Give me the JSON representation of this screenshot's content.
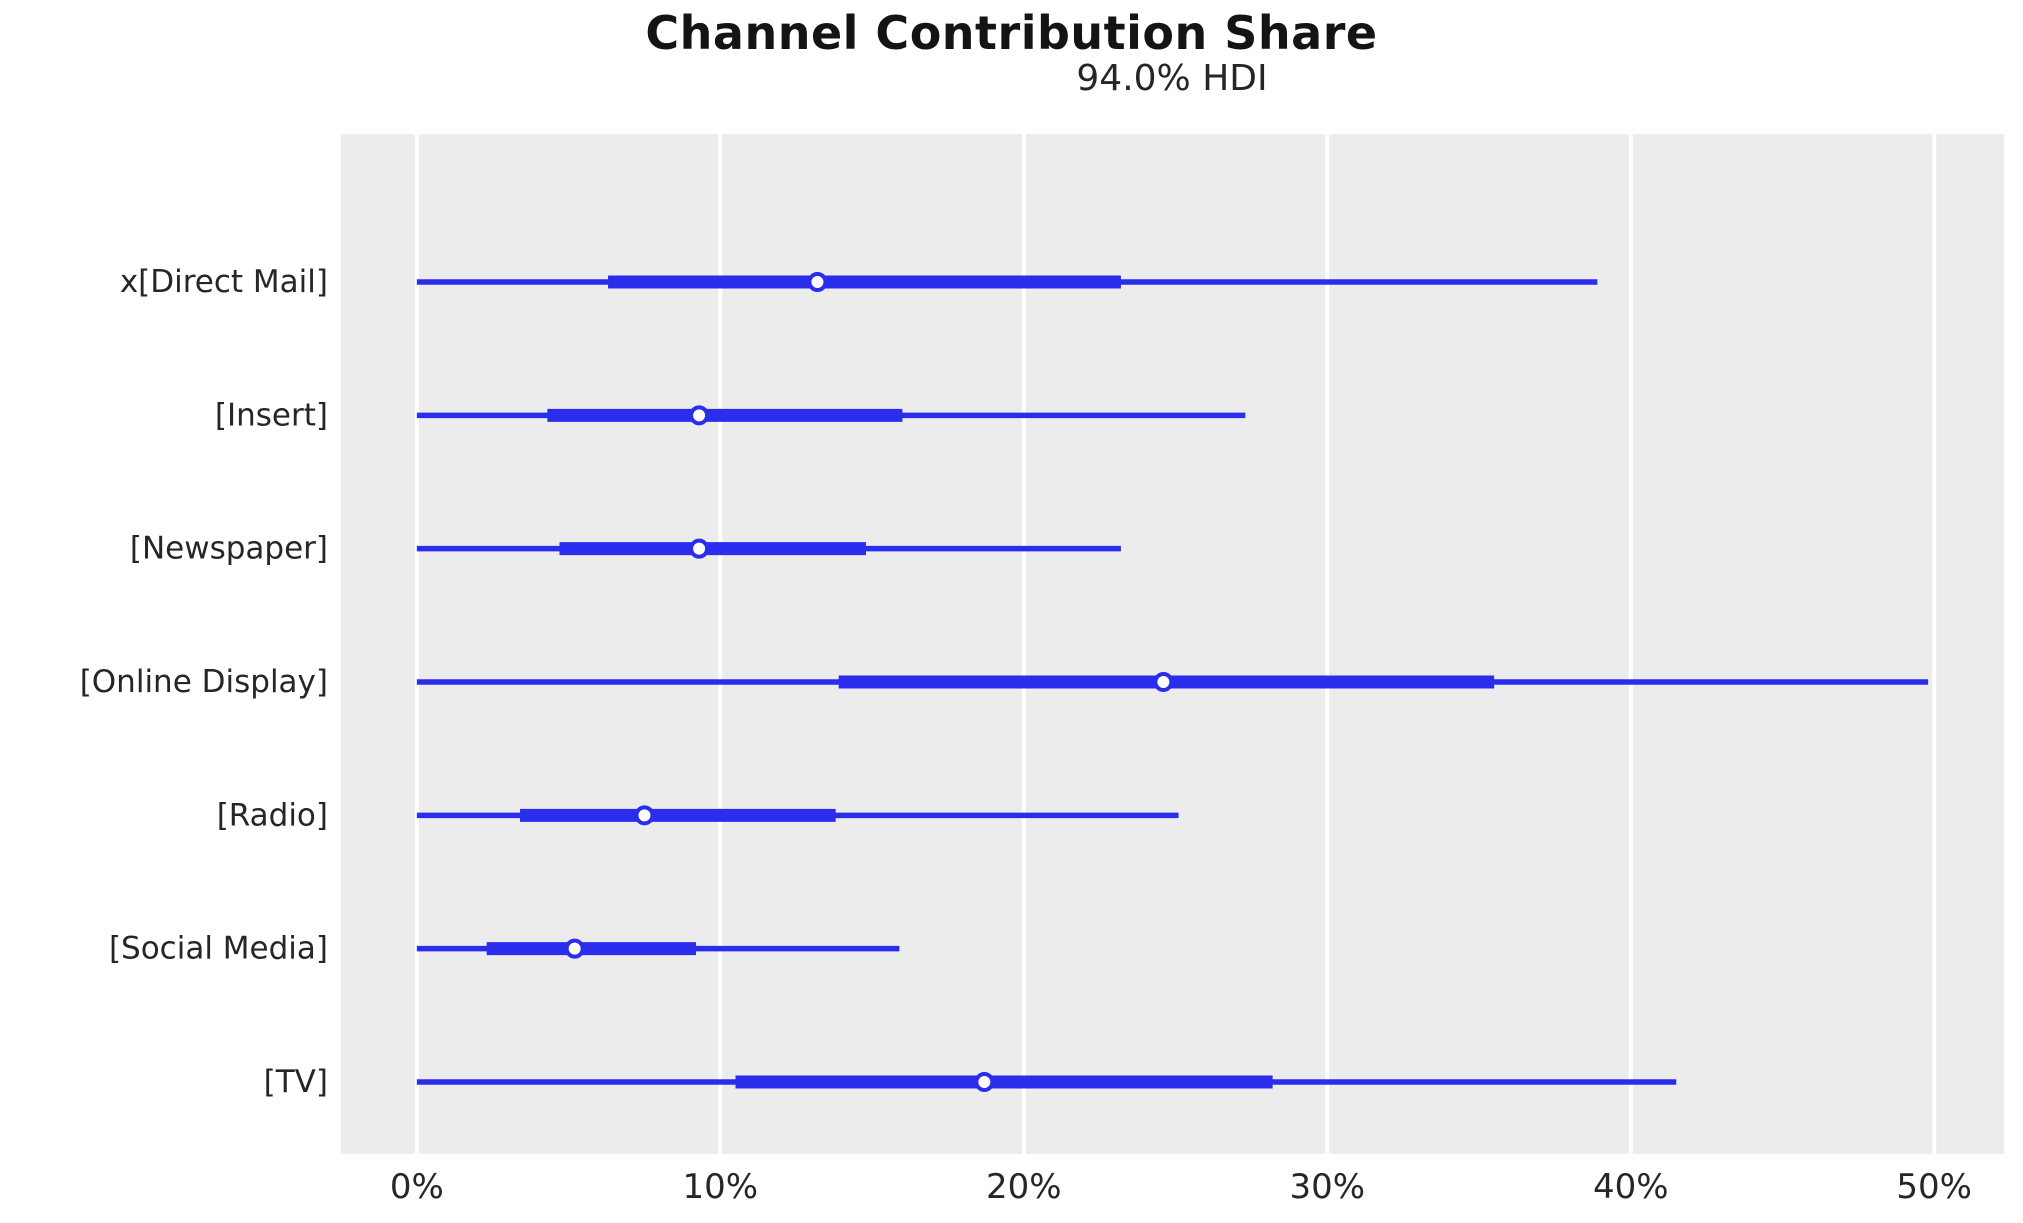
{
  "figure": {
    "title": "Channel Contribution Share",
    "subtitle": "94.0% HDI"
  },
  "chart_data": {
    "type": "forest",
    "title": "Channel Contribution Share",
    "subtitle": "94.0% HDI",
    "orientation": "horizontal",
    "unit": "percent",
    "grid": "vertical white gridlines on gray panel",
    "legend_position": "none",
    "xtick_labels": [
      "0%",
      "10%",
      "20%",
      "30%",
      "40%",
      "50%"
    ],
    "xtick_values": [
      0,
      10,
      20,
      30,
      40,
      50
    ],
    "xlim": [
      -2.5,
      52.3
    ],
    "rows": [
      {
        "label": "x[Direct Mail]",
        "hdi_low": 0.0,
        "hdi_high": 38.9,
        "quartile_low": 6.3,
        "quartile_high": 23.2,
        "median": 13.2
      },
      {
        "label": "[Insert]",
        "hdi_low": 0.0,
        "hdi_high": 27.3,
        "quartile_low": 4.3,
        "quartile_high": 16.0,
        "median": 9.3
      },
      {
        "label": "[Newspaper]",
        "hdi_low": 0.0,
        "hdi_high": 23.2,
        "quartile_low": 4.7,
        "quartile_high": 14.8,
        "median": 9.3
      },
      {
        "label": "[Online Display]",
        "hdi_low": 0.0,
        "hdi_high": 49.8,
        "quartile_low": 13.9,
        "quartile_high": 35.5,
        "median": 24.6
      },
      {
        "label": "[Radio]",
        "hdi_low": 0.0,
        "hdi_high": 25.1,
        "quartile_low": 3.4,
        "quartile_high": 13.8,
        "median": 7.5
      },
      {
        "label": "[Social Media]",
        "hdi_low": 0.0,
        "hdi_high": 15.9,
        "quartile_low": 2.3,
        "quartile_high": 9.2,
        "median": 5.2
      },
      {
        "label": "[TV]",
        "hdi_low": 0.0,
        "hdi_high": 41.5,
        "quartile_low": 10.5,
        "quartile_high": 28.2,
        "median": 18.7
      }
    ],
    "colors": {
      "figure_background": "#ffffff",
      "plot_background": "#ececec",
      "gridline": "#ffffff",
      "line": "#2a2eec",
      "marker_face": "#ffffff",
      "marker_edge": "#2a2eec",
      "text": "#262626",
      "title_text": "#141414"
    }
  }
}
